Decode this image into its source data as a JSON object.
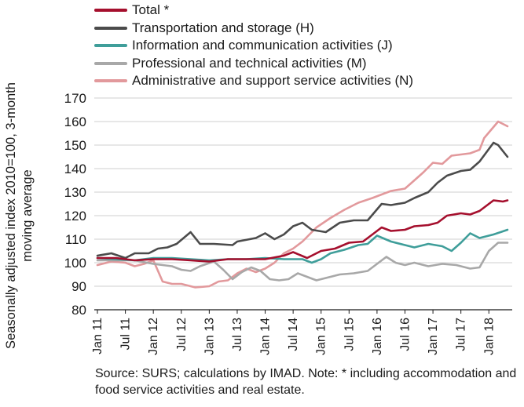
{
  "chart_data": {
    "type": "line",
    "ylabel": "Seasonally adjusted index 2010=100, 3-month moving average",
    "ylim": [
      80,
      170
    ],
    "yticks": [
      80,
      90,
      100,
      110,
      120,
      130,
      140,
      150,
      160,
      170
    ],
    "xticks": [
      "Jan 11",
      "Jul 11",
      "Jan 12",
      "Jul 12",
      "Jan 13",
      "Jul 13",
      "Jan 14",
      "Jul 14",
      "Jan 15",
      "Jul 15",
      "Jan 16",
      "Jul 16",
      "Jan 17",
      "Jul 17",
      "Jan 18"
    ],
    "x_start": "Jan 11",
    "grid": "horizontal",
    "legend_position": "top",
    "source_note": "Source:  SURS; calculations by IMAD. Note: * including accommodation and food service activities and real estate.",
    "series": [
      {
        "name": "Total *",
        "color": "#a50f2d",
        "points": [
          [
            0,
            102
          ],
          [
            4,
            102
          ],
          [
            8,
            101
          ],
          [
            12,
            101.5
          ],
          [
            16,
            101.5
          ],
          [
            20,
            101
          ],
          [
            24,
            100.5
          ],
          [
            28,
            101.5
          ],
          [
            32,
            101.5
          ],
          [
            36,
            101.5
          ],
          [
            40,
            103
          ],
          [
            42,
            104.5
          ],
          [
            45,
            102
          ],
          [
            48,
            105
          ],
          [
            51,
            106
          ],
          [
            54,
            108.5
          ],
          [
            57,
            109
          ],
          [
            59,
            112
          ],
          [
            61,
            115
          ],
          [
            63,
            113.5
          ],
          [
            66,
            114
          ],
          [
            68,
            115.5
          ],
          [
            71,
            116
          ],
          [
            73,
            117
          ],
          [
            75,
            120
          ],
          [
            78,
            121
          ],
          [
            80,
            120.5
          ],
          [
            82,
            122
          ],
          [
            85,
            126.5
          ],
          [
            87,
            126
          ],
          [
            88,
            126.5
          ]
        ]
      },
      {
        "name": "Transportation and storage (H)",
        "color": "#4b4b4b",
        "points": [
          [
            0,
            103
          ],
          [
            3,
            104
          ],
          [
            6,
            102
          ],
          [
            8,
            104
          ],
          [
            11,
            104
          ],
          [
            13,
            106
          ],
          [
            15,
            106.5
          ],
          [
            17,
            108
          ],
          [
            20,
            113
          ],
          [
            22,
            108
          ],
          [
            25,
            108
          ],
          [
            29,
            107.5
          ],
          [
            30,
            109
          ],
          [
            34,
            110.5
          ],
          [
            36,
            112.5
          ],
          [
            38,
            110
          ],
          [
            40,
            112
          ],
          [
            42,
            115.5
          ],
          [
            44,
            117
          ],
          [
            46,
            114
          ],
          [
            49,
            113
          ],
          [
            52,
            117
          ],
          [
            55,
            118
          ],
          [
            58,
            118
          ],
          [
            61,
            125
          ],
          [
            63,
            124.5
          ],
          [
            66,
            125.5
          ],
          [
            68,
            127.5
          ],
          [
            71,
            130
          ],
          [
            73,
            134
          ],
          [
            75,
            137
          ],
          [
            78,
            139
          ],
          [
            80,
            139.5
          ],
          [
            82,
            143
          ],
          [
            85,
            151
          ],
          [
            86,
            150
          ],
          [
            88,
            145
          ]
        ]
      },
      {
        "name": "Information and communication activities (J)",
        "color": "#3f9e9a",
        "points": [
          [
            0,
            102
          ],
          [
            4,
            101.5
          ],
          [
            8,
            101
          ],
          [
            12,
            102
          ],
          [
            16,
            102
          ],
          [
            20,
            101.5
          ],
          [
            24,
            101
          ],
          [
            28,
            101.5
          ],
          [
            32,
            101.5
          ],
          [
            36,
            102
          ],
          [
            40,
            101.5
          ],
          [
            44,
            101.5
          ],
          [
            46,
            100
          ],
          [
            48,
            101.5
          ],
          [
            50,
            104
          ],
          [
            53,
            105.5
          ],
          [
            56,
            107.5
          ],
          [
            58,
            108
          ],
          [
            60,
            111.5
          ],
          [
            63,
            109
          ],
          [
            66,
            107.5
          ],
          [
            68,
            106.5
          ],
          [
            71,
            108
          ],
          [
            74,
            107
          ],
          [
            76,
            105
          ],
          [
            78,
            108.5
          ],
          [
            80,
            112.5
          ],
          [
            82,
            110.5
          ],
          [
            85,
            112
          ],
          [
            88,
            114
          ]
        ]
      },
      {
        "name": "Professional and technical activities (M)",
        "color": "#a8a8a8",
        "points": [
          [
            0,
            101
          ],
          [
            4,
            101
          ],
          [
            8,
            101
          ],
          [
            12,
            99.5
          ],
          [
            16,
            98.5
          ],
          [
            18,
            97
          ],
          [
            20,
            96.5
          ],
          [
            22,
            98.5
          ],
          [
            25,
            100.5
          ],
          [
            27,
            97
          ],
          [
            29,
            93
          ],
          [
            31,
            96
          ],
          [
            33,
            98
          ],
          [
            35,
            96.5
          ],
          [
            37,
            93
          ],
          [
            39,
            92.5
          ],
          [
            41,
            93
          ],
          [
            43,
            95.5
          ],
          [
            45,
            94
          ],
          [
            47,
            92.5
          ],
          [
            49,
            93.5
          ],
          [
            52,
            95
          ],
          [
            55,
            95.5
          ],
          [
            58,
            96.5
          ],
          [
            60,
            99.5
          ],
          [
            62,
            102.5
          ],
          [
            64,
            100
          ],
          [
            66,
            99
          ],
          [
            68,
            100
          ],
          [
            71,
            98.5
          ],
          [
            74,
            99.5
          ],
          [
            77,
            99
          ],
          [
            80,
            97.5
          ],
          [
            82,
            98
          ],
          [
            84,
            105
          ],
          [
            86,
            108.5
          ],
          [
            88,
            108.5
          ]
        ]
      },
      {
        "name": "Administrative and support service activities (N)",
        "color": "#e2999c",
        "points": [
          [
            0,
            99
          ],
          [
            3,
            100.5
          ],
          [
            6,
            100
          ],
          [
            8,
            98.5
          ],
          [
            10,
            99.5
          ],
          [
            12,
            101
          ],
          [
            14,
            92
          ],
          [
            16,
            91
          ],
          [
            18,
            91
          ],
          [
            21,
            89.5
          ],
          [
            24,
            90
          ],
          [
            26,
            92
          ],
          [
            28,
            92.5
          ],
          [
            30,
            95.5
          ],
          [
            32,
            97.5
          ],
          [
            34,
            96
          ],
          [
            36,
            97.5
          ],
          [
            38,
            100
          ],
          [
            40,
            104
          ],
          [
            42,
            106
          ],
          [
            44,
            109
          ],
          [
            47,
            115
          ],
          [
            50,
            119
          ],
          [
            53,
            122.5
          ],
          [
            56,
            125.5
          ],
          [
            59,
            127.5
          ],
          [
            61,
            129
          ],
          [
            63,
            130.5
          ],
          [
            66,
            131.5
          ],
          [
            68,
            135
          ],
          [
            70,
            138.5
          ],
          [
            72,
            142.5
          ],
          [
            74,
            142
          ],
          [
            76,
            145.5
          ],
          [
            78,
            146
          ],
          [
            80,
            146.5
          ],
          [
            82,
            148
          ],
          [
            83,
            153
          ],
          [
            86,
            160
          ],
          [
            88,
            158
          ]
        ]
      }
    ]
  }
}
